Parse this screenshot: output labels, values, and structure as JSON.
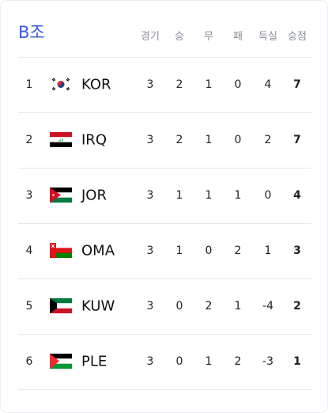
{
  "header": {
    "title": "B조"
  },
  "table": {
    "columns": [
      "경기",
      "승",
      "무",
      "패",
      "득실",
      "승점"
    ],
    "rows": [
      [
        1,
        "KOR",
        3,
        2,
        1,
        0,
        4,
        7
      ],
      [
        2,
        "IRQ",
        3,
        2,
        1,
        0,
        2,
        7
      ],
      [
        3,
        "JOR",
        3,
        1,
        1,
        1,
        0,
        4
      ],
      [
        4,
        "OMA",
        3,
        1,
        0,
        2,
        1,
        3
      ],
      [
        5,
        "KUW",
        3,
        0,
        2,
        1,
        -4,
        2
      ],
      [
        6,
        "PLE",
        3,
        0,
        1,
        2,
        -3,
        1
      ]
    ]
  }
}
